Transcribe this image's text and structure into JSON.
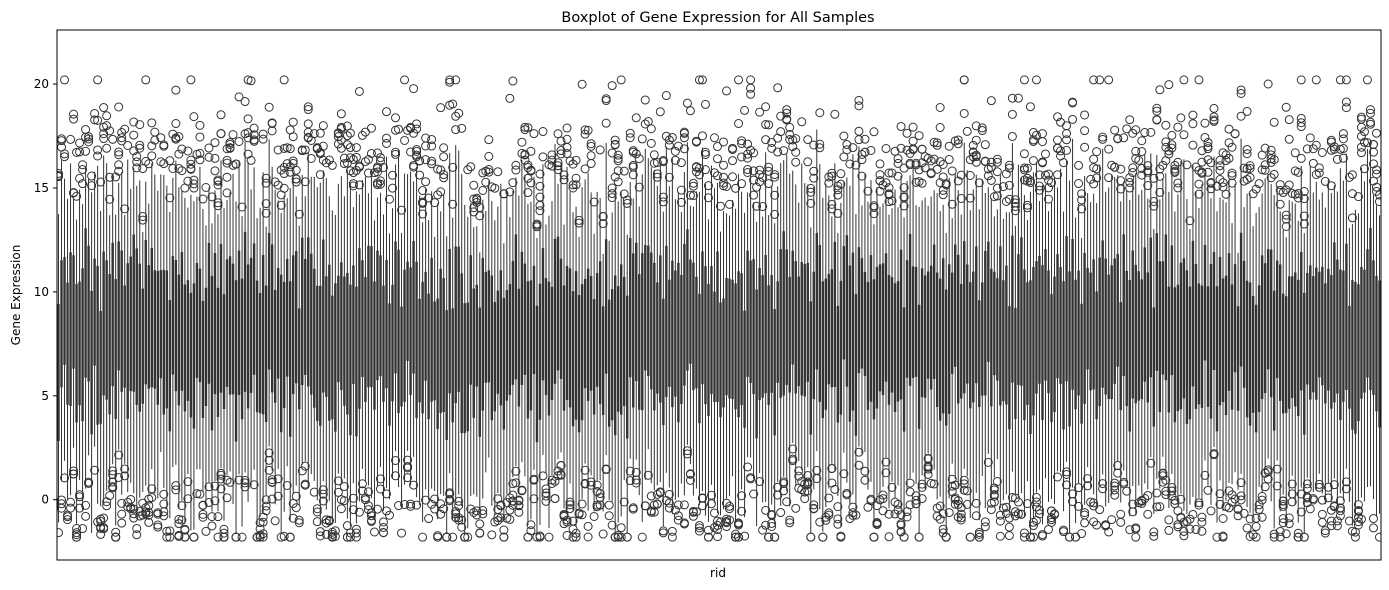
{
  "chart_data": {
    "type": "boxplot",
    "title": "Boxplot of Gene Expression for All Samples",
    "xlabel": "rid",
    "ylabel": "Gene Expression",
    "ylim": [
      -2.9,
      22.6
    ],
    "yticks": [
      0,
      5,
      10,
      15,
      20
    ],
    "ytick_labels": [
      "0",
      "5",
      "10",
      "15",
      "20"
    ],
    "xtick_labels": [],
    "grid": false,
    "legend": "none",
    "box_color": "#333333",
    "sample_count_shown": "dense, approx. 440 samples",
    "representative_stats": {
      "median_range": [
        5.5,
        9.5
      ],
      "q1_range": [
        3.5,
        6.5
      ],
      "q3_range": [
        10.5,
        13.5
      ],
      "outlier_max": 21.4,
      "outlier_min": -1.8
    }
  }
}
